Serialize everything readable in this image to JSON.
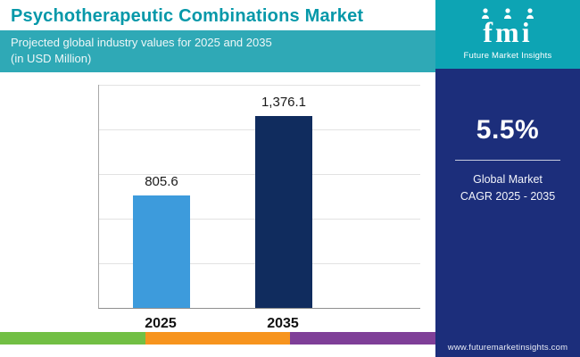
{
  "header": {
    "title": "Psychotherapeutic Combinations Market",
    "subtitle_line1": "Projected global industry values for 2025 and 2035",
    "subtitle_line2": "(in USD Million)"
  },
  "chart_data": {
    "type": "bar",
    "title": "Psychotherapeutic Combinations Market",
    "subtitle": "Projected global industry values for 2025 and 2035 (in USD Million)",
    "categories": [
      "2025",
      "2035"
    ],
    "values": [
      805.6,
      1376.1
    ],
    "value_labels": [
      "805.6",
      "1,376.1"
    ],
    "bar_colors": [
      "#3d9bdc",
      "#102c5e"
    ],
    "xlabel": "",
    "ylabel": "",
    "ylim": [
      0,
      1600
    ],
    "grid": true,
    "legend": "none"
  },
  "sidebar": {
    "logo_text": "fmi",
    "logo_tagline": "Future Market Insights",
    "cagr_value": "5.5%",
    "cagr_label_line1": "Global Market",
    "cagr_label_line2": "CAGR 2025 - 2035",
    "website": "www.futuremarketinsights.com",
    "background_color": "#1c2e7b",
    "logo_background_color": "#0da4b4"
  },
  "footer_stripe": {
    "colors": [
      "#72bf44",
      "#f7941e",
      "#7f3f98"
    ]
  },
  "accent_colors": {
    "title_teal": "#0598a9",
    "subtitle_band_teal": "#2fa9b6"
  }
}
